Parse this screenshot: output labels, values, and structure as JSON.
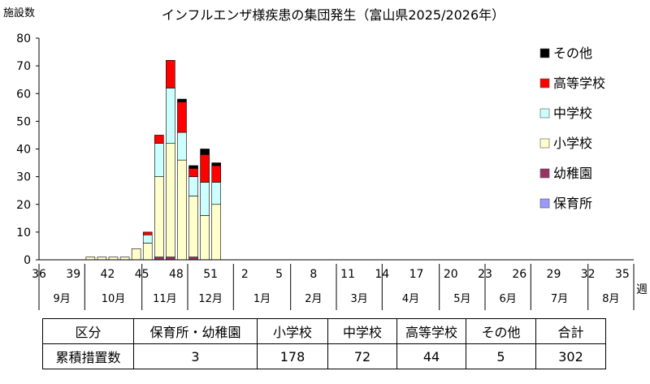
{
  "chart_data": {
    "type": "bar",
    "stacked": true,
    "title": "インフルエンザ様疾患の集団発生（富山県2025/2026年）",
    "ylabel": "施設数",
    "xlabel": "週",
    "ylim": [
      0,
      80
    ],
    "yticks": [
      0,
      10,
      20,
      30,
      40,
      50,
      60,
      70,
      80
    ],
    "x_weeks": [
      36,
      37,
      38,
      39,
      40,
      41,
      42,
      43,
      44,
      45,
      46,
      47,
      48,
      49,
      50,
      51,
      52,
      1,
      2,
      3,
      4,
      5,
      6,
      7,
      8,
      9,
      10,
      11,
      12,
      13,
      14,
      15,
      16,
      17,
      18,
      19,
      20,
      21,
      22,
      23,
      24,
      25,
      26,
      27,
      28,
      29,
      30,
      31,
      32,
      33,
      34,
      35
    ],
    "xtick_labels": [
      "36",
      "39",
      "42",
      "45",
      "48",
      "51",
      "2",
      "5",
      "8",
      "11",
      "14",
      "17",
      "20",
      "23",
      "26",
      "29",
      "32",
      "35"
    ],
    "months": [
      {
        "label": "9月",
        "start": 36,
        "end": 39
      },
      {
        "label": "10月",
        "start": 40,
        "end": 44
      },
      {
        "label": "11月",
        "start": 45,
        "end": 48
      },
      {
        "label": "12月",
        "start": 49,
        "end": 52
      },
      {
        "label": "1月",
        "start": 1,
        "end": 5
      },
      {
        "label": "2月",
        "start": 6,
        "end": 9
      },
      {
        "label": "3月",
        "start": 10,
        "end": 13
      },
      {
        "label": "4月",
        "start": 14,
        "end": 18
      },
      {
        "label": "5月",
        "start": 19,
        "end": 22
      },
      {
        "label": "6月",
        "start": 23,
        "end": 26
      },
      {
        "label": "7月",
        "start": 27,
        "end": 31
      },
      {
        "label": "8月",
        "start": 32,
        "end": 35
      }
    ],
    "legend_position": "right",
    "series": [
      {
        "name": "保育所",
        "color": "#9999ff",
        "values": [
          0,
          0,
          0,
          0,
          0,
          0,
          0,
          0,
          0,
          0,
          0,
          0,
          0,
          0,
          0,
          0,
          0,
          0,
          0,
          0,
          0,
          0,
          0,
          0,
          0,
          0,
          0,
          0,
          0,
          0,
          0,
          0,
          0,
          0,
          0,
          0,
          0,
          0,
          0,
          0,
          0,
          0,
          0,
          0,
          0,
          0,
          0,
          0,
          0,
          0,
          0,
          0
        ]
      },
      {
        "name": "幼稚園",
        "color": "#993366",
        "values": [
          0,
          0,
          0,
          0,
          0,
          0,
          0,
          0,
          0,
          0,
          1,
          1,
          0,
          1,
          0,
          0,
          0,
          0,
          0,
          0,
          0,
          0,
          0,
          0,
          0,
          0,
          0,
          0,
          0,
          0,
          0,
          0,
          0,
          0,
          0,
          0,
          0,
          0,
          0,
          0,
          0,
          0,
          0,
          0,
          0,
          0,
          0,
          0,
          0,
          0,
          0,
          0
        ]
      },
      {
        "name": "小学校",
        "color": "#ffffcc",
        "values": [
          0,
          0,
          0,
          0,
          1,
          1,
          1,
          1,
          4,
          6,
          29,
          41,
          36,
          22,
          16,
          20,
          0,
          0,
          0,
          0,
          0,
          0,
          0,
          0,
          0,
          0,
          0,
          0,
          0,
          0,
          0,
          0,
          0,
          0,
          0,
          0,
          0,
          0,
          0,
          0,
          0,
          0,
          0,
          0,
          0,
          0,
          0,
          0,
          0,
          0,
          0,
          0
        ]
      },
      {
        "name": "中学校",
        "color": "#ccffff",
        "values": [
          0,
          0,
          0,
          0,
          0,
          0,
          0,
          0,
          0,
          3,
          12,
          20,
          10,
          7,
          12,
          8,
          0,
          0,
          0,
          0,
          0,
          0,
          0,
          0,
          0,
          0,
          0,
          0,
          0,
          0,
          0,
          0,
          0,
          0,
          0,
          0,
          0,
          0,
          0,
          0,
          0,
          0,
          0,
          0,
          0,
          0,
          0,
          0,
          0,
          0,
          0,
          0
        ]
      },
      {
        "name": "高等学校",
        "color": "#ff0000",
        "values": [
          0,
          0,
          0,
          0,
          0,
          0,
          0,
          0,
          0,
          1,
          3,
          10,
          11,
          3,
          10,
          6,
          0,
          0,
          0,
          0,
          0,
          0,
          0,
          0,
          0,
          0,
          0,
          0,
          0,
          0,
          0,
          0,
          0,
          0,
          0,
          0,
          0,
          0,
          0,
          0,
          0,
          0,
          0,
          0,
          0,
          0,
          0,
          0,
          0,
          0,
          0,
          0
        ]
      },
      {
        "name": "その他",
        "color": "#000000",
        "values": [
          0,
          0,
          0,
          0,
          0,
          0,
          0,
          0,
          0,
          0,
          0,
          0,
          1,
          1,
          2,
          1,
          0,
          0,
          0,
          0,
          0,
          0,
          0,
          0,
          0,
          0,
          0,
          0,
          0,
          0,
          0,
          0,
          0,
          0,
          0,
          0,
          0,
          0,
          0,
          0,
          0,
          0,
          0,
          0,
          0,
          0,
          0,
          0,
          0,
          0,
          0,
          0
        ]
      }
    ]
  },
  "summary_table": {
    "header": [
      "区分",
      "保育所・幼稚園",
      "小学校",
      "中学校",
      "高等学校",
      "その他",
      "合計"
    ],
    "row": [
      "累積措置数",
      "3",
      "178",
      "72",
      "44",
      "5",
      "302"
    ]
  }
}
